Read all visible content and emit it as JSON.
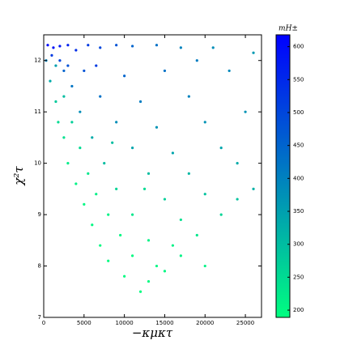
{
  "chart_data": {
    "type": "scatter",
    "xlabel": "−κμκτ",
    "ylabel": "χ²τ",
    "colorbar_label": "mH±",
    "xlim": [
      0,
      27000
    ],
    "ylim": [
      7,
      12.5
    ],
    "xticks": [
      0,
      5000,
      10000,
      15000,
      20000,
      25000
    ],
    "yticks": [
      7,
      8,
      9,
      10,
      11,
      12
    ],
    "clim": [
      189,
      618
    ],
    "cticks": [
      200,
      250,
      300,
      350,
      400,
      450,
      500,
      550,
      600
    ],
    "colormap": "winter",
    "series": [
      {
        "x": [
          500,
          1200,
          2000,
          3000,
          4000,
          5500,
          7000,
          9000,
          11000,
          14000,
          17000,
          21000,
          26000,
          300,
          800,
          1500,
          1800,
          2500,
          3000,
          4000,
          5000,
          6000,
          7000,
          8000,
          10000,
          12000,
          13000,
          15000,
          17000,
          19000,
          22000,
          24000,
          26000,
          2500,
          3500,
          4500,
          6000,
          7500,
          9000,
          11000,
          13000,
          5000,
          7000,
          9000,
          11000,
          13000,
          15000,
          17000,
          10000,
          12000,
          14000,
          16000,
          18000,
          20000,
          15000,
          18000,
          20000,
          22000,
          24000,
          25000,
          23000,
          19000,
          1000,
          2000,
          3000,
          1500,
          2500,
          3500,
          4500,
          5500,
          6500,
          8000,
          9500,
          11000,
          14000,
          16000,
          20000,
          12500,
          8500,
          6500
        ],
        "values": [
          12.3,
          12.25,
          12.28,
          12.3,
          12.2,
          12.3,
          12.25,
          12.3,
          12.28,
          12.3,
          12.25,
          12.25,
          12.15,
          12.0,
          11.6,
          11.2,
          10.8,
          10.5,
          10.0,
          9.6,
          9.2,
          8.8,
          8.4,
          8.1,
          7.8,
          7.5,
          7.7,
          7.9,
          8.2,
          8.6,
          9.0,
          9.3,
          9.5,
          11.8,
          11.5,
          11.0,
          10.5,
          10.0,
          9.5,
          9.0,
          8.5,
          11.8,
          11.3,
          10.8,
          10.3,
          9.8,
          9.3,
          8.9,
          11.7,
          11.2,
          10.7,
          10.2,
          9.8,
          9.4,
          11.8,
          11.3,
          10.8,
          10.3,
          10.0,
          11.0,
          11.8,
          12.0,
          12.1,
          12.0,
          11.9,
          11.9,
          11.3,
          10.8,
          10.3,
          9.8,
          9.4,
          9.0,
          8.6,
          8.2,
          8.0,
          8.4,
          8.0,
          9.5,
          10.4,
          11.9
        ],
        "c": [
          600,
          590,
          580,
          560,
          540,
          520,
          500,
          480,
          450,
          430,
          400,
          380,
          360,
          400,
          330,
          280,
          250,
          240,
          220,
          210,
          200,
          200,
          195,
          195,
          195,
          192,
          195,
          200,
          210,
          230,
          260,
          290,
          320,
          450,
          420,
          380,
          330,
          300,
          260,
          230,
          210,
          480,
          430,
          380,
          340,
          300,
          270,
          240,
          450,
          410,
          370,
          340,
          310,
          290,
          430,
          400,
          370,
          340,
          330,
          370,
          390,
          410,
          520,
          500,
          480,
          350,
          300,
          270,
          250,
          230,
          215,
          210,
          200,
          198,
          200,
          210,
          210,
          250,
          300,
          520
        ]
      }
    ]
  }
}
